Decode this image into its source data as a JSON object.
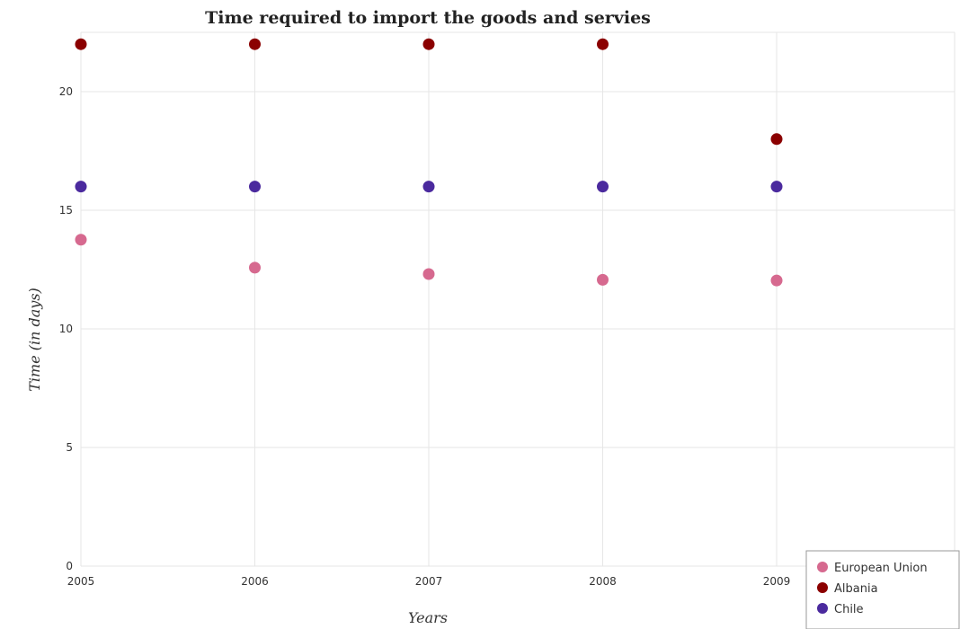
{
  "chart_data": {
    "type": "scatter",
    "title": "Time required to import the goods and servies",
    "xlabel": "Years",
    "ylabel": "Time (in days)",
    "categories": [
      "2005",
      "2006",
      "2007",
      "2008",
      "2009"
    ],
    "ylim": [
      0,
      22.5
    ],
    "yticks": [
      0,
      5,
      10,
      15,
      20
    ],
    "grid": true,
    "legend_position": "bottom-right",
    "series": [
      {
        "name": "European Union",
        "color": "#d6698f",
        "values": [
          13.76,
          12.58,
          12.31,
          12.07,
          12.04
        ]
      },
      {
        "name": "Albania",
        "color": "#8b0000",
        "values": [
          22,
          22,
          22,
          22,
          18
        ]
      },
      {
        "name": "Chile",
        "color": "#4b2a9e",
        "values": [
          16,
          16,
          16,
          16,
          16
        ]
      }
    ]
  }
}
